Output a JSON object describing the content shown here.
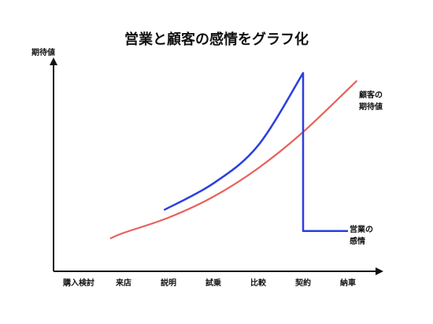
{
  "chart_data": {
    "type": "line",
    "title": "営業と顧客の感情をグラフ化",
    "ylabel": "期待値",
    "xlabel": "",
    "categories": [
      "購入検討",
      "来店",
      "説明",
      "試乗",
      "比較",
      "契約",
      "納車"
    ],
    "grid": false,
    "y_ticks_shown": false,
    "ylim": [
      0,
      100
    ],
    "series": [
      {
        "name": "顧客の\n期待値",
        "color": "#e8615c",
        "label_position": "right-top",
        "points": [
          {
            "x": 0.7,
            "y": 11
          },
          {
            "x": 1.0,
            "y": 14
          },
          {
            "x": 2.0,
            "y": 22
          },
          {
            "x": 3.0,
            "y": 33
          },
          {
            "x": 4.0,
            "y": 48
          },
          {
            "x": 5.0,
            "y": 67
          },
          {
            "x": 6.2,
            "y": 94
          }
        ]
      },
      {
        "name": "営業の\n感情",
        "color": "#2a3fe0",
        "label_position": "right-bottom",
        "points": [
          {
            "x": 1.9,
            "y": 26
          },
          {
            "x": 3.0,
            "y": 40
          },
          {
            "x": 4.0,
            "y": 60
          },
          {
            "x": 5.0,
            "y": 98
          },
          {
            "x": 5.0,
            "y": 15
          },
          {
            "x": 6.0,
            "y": 15
          }
        ]
      }
    ]
  }
}
